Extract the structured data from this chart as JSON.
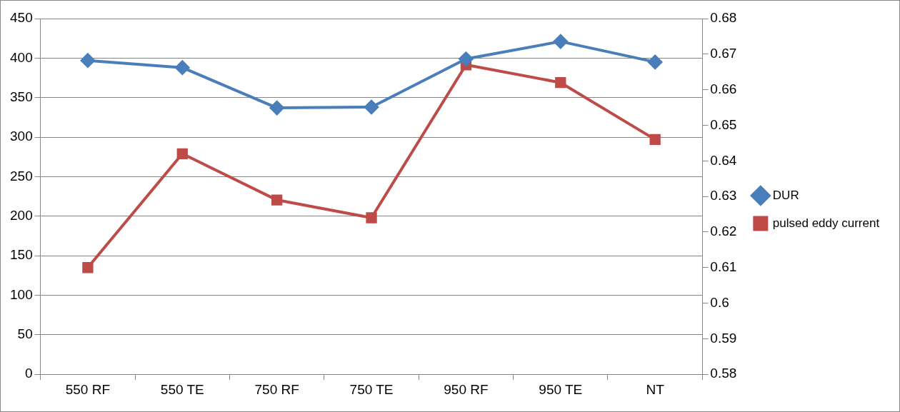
{
  "chart_data": {
    "type": "line",
    "categories": [
      "550 RF",
      "550 TE",
      "750 RF",
      "750 TE",
      "950 RF",
      "950 TE",
      "NT"
    ],
    "series": [
      {
        "name": "DUR",
        "color": "#4a7ebb",
        "marker": "diamond",
        "values": [
          397,
          388,
          337,
          338,
          399,
          421,
          395
        ]
      },
      {
        "name": "pulsed eddy current",
        "color": "#be4b48",
        "marker": "square",
        "axis": "y2",
        "values": [
          0.61,
          0.642,
          0.629,
          0.624,
          0.667,
          0.662,
          0.646
        ]
      }
    ],
    "ylim": [
      0,
      450
    ],
    "yticks": [
      0,
      50,
      100,
      150,
      200,
      250,
      300,
      350,
      400,
      450
    ],
    "y2lim": [
      0.58,
      0.68
    ],
    "y2ticks": [
      0.58,
      0.59,
      0.6,
      0.61,
      0.62,
      0.63,
      0.64,
      0.65,
      0.66,
      0.67,
      0.68
    ],
    "grid": "y",
    "legend": "right",
    "line_style": "solid"
  }
}
